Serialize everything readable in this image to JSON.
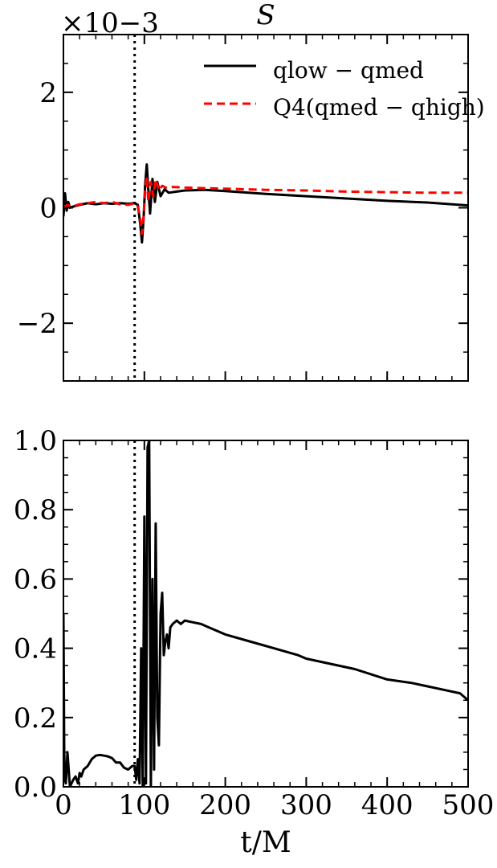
{
  "chart_data": [
    {
      "type": "line",
      "title": "S",
      "offset_text": "×10−3",
      "xlabel": "",
      "ylabel": "",
      "xlim": [
        0,
        500
      ],
      "ylim": [
        -3,
        3
      ],
      "yticks": [
        -2,
        0,
        2
      ],
      "ytick_labels": [
        "−2",
        "0",
        "2"
      ],
      "vline_x": 88,
      "legend_position": "top-right",
      "series": [
        {
          "name": "qlow − qmed",
          "color": "#000000",
          "style": "solid",
          "x": [
            0,
            2,
            4,
            6,
            8,
            12,
            20,
            30,
            40,
            50,
            60,
            70,
            80,
            88,
            92,
            95,
            97,
            99,
            101,
            103,
            105,
            107,
            110,
            113,
            116,
            120,
            125,
            130,
            140,
            150,
            175,
            200,
            250,
            300,
            350,
            400,
            450,
            500
          ],
          "values": [
            -0.15,
            0.25,
            -0.05,
            0.1,
            0.0,
            0.02,
            0.05,
            0.08,
            0.06,
            0.08,
            0.07,
            0.08,
            0.07,
            0.08,
            0.05,
            -0.3,
            -0.6,
            -0.2,
            0.4,
            0.75,
            0.3,
            -0.1,
            0.5,
            0.1,
            0.45,
            0.2,
            0.32,
            0.26,
            0.28,
            0.3,
            0.31,
            0.29,
            0.24,
            0.2,
            0.16,
            0.12,
            0.09,
            0.04
          ]
        },
        {
          "name": "Q4(qmed − qhigh)",
          "color": "#ff0000",
          "style": "dashed",
          "x": [
            0,
            5,
            10,
            20,
            30,
            40,
            50,
            60,
            70,
            80,
            88,
            92,
            95,
            97,
            99,
            101,
            103,
            105,
            108,
            111,
            114,
            118,
            122,
            128,
            135,
            150,
            175,
            200,
            250,
            300,
            350,
            400,
            450,
            500
          ],
          "values": [
            0.0,
            0.05,
            0.02,
            0.06,
            0.08,
            0.1,
            0.08,
            0.1,
            0.06,
            0.05,
            0.08,
            0.02,
            -0.2,
            -0.45,
            -0.15,
            0.3,
            0.55,
            0.1,
            0.45,
            0.2,
            0.5,
            0.3,
            0.38,
            0.34,
            0.36,
            0.35,
            0.34,
            0.33,
            0.31,
            0.3,
            0.28,
            0.27,
            0.26,
            0.26
          ]
        }
      ]
    },
    {
      "type": "line",
      "title": "",
      "xlabel": "t/M",
      "ylabel": "",
      "xlim": [
        0,
        500
      ],
      "ylim": [
        0,
        1
      ],
      "xticks": [
        0,
        100,
        200,
        300,
        400,
        500
      ],
      "xtick_labels": [
        "0",
        "100",
        "200",
        "300",
        "400",
        "500"
      ],
      "yticks": [
        0,
        0.2,
        0.4,
        0.6,
        0.8,
        1.0
      ],
      "ytick_labels": [
        "0.0",
        "0.2",
        "0.4",
        "0.6",
        "0.8",
        "1.0"
      ],
      "vline_x": 88,
      "series": [
        {
          "color": "#000000",
          "style": "solid",
          "x": [
            0,
            1,
            2,
            3,
            4,
            5,
            8,
            12,
            15,
            18,
            20,
            22,
            25,
            30,
            35,
            40,
            45,
            50,
            55,
            60,
            65,
            70,
            75,
            80,
            85,
            88,
            90,
            92,
            94,
            96,
            98,
            100,
            102,
            104,
            106,
            108,
            110,
            112,
            114,
            116,
            118,
            120,
            122,
            124,
            126,
            128,
            130,
            132,
            135,
            140,
            145,
            150,
            160,
            170,
            180,
            200,
            230,
            260,
            290,
            300,
            330,
            360,
            400,
            430,
            450,
            470,
            490,
            500
          ],
          "values": [
            0.5,
            0.1,
            0.02,
            0.01,
            0.05,
            0.1,
            0.0,
            0.02,
            0.03,
            0.01,
            0.04,
            0.03,
            0.05,
            0.06,
            0.08,
            0.09,
            0.092,
            0.09,
            0.088,
            0.083,
            0.07,
            0.07,
            0.055,
            0.05,
            0.06,
            0.06,
            0.02,
            0.08,
            0.01,
            0.4,
            0.0,
            0.78,
            0.01,
            0.98,
            1.0,
            0.0,
            0.6,
            0.05,
            0.76,
            0.2,
            0.12,
            0.5,
            0.56,
            0.38,
            0.42,
            0.44,
            0.4,
            0.46,
            0.47,
            0.48,
            0.47,
            0.48,
            0.475,
            0.47,
            0.46,
            0.44,
            0.42,
            0.4,
            0.38,
            0.37,
            0.355,
            0.34,
            0.31,
            0.3,
            0.29,
            0.28,
            0.27,
            0.25
          ]
        }
      ]
    }
  ]
}
